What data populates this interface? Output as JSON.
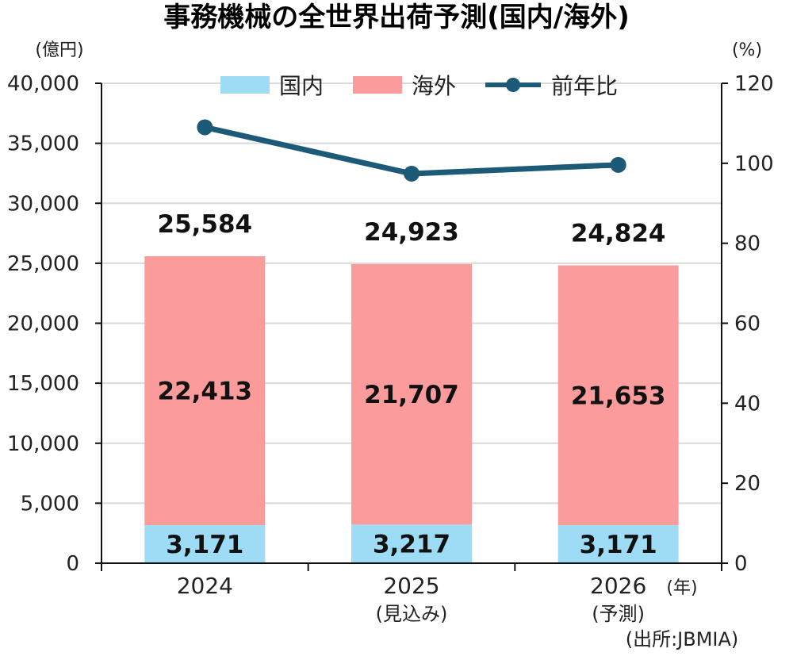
{
  "title": "事務機械の全世界出荷予測(国内/海外)",
  "left_unit": "(億円)",
  "right_unit": "(%)",
  "x_unit": "(年)",
  "source": "(出所:JBMIA)",
  "colors": {
    "domestic": "#9ddcf4",
    "overseas": "#fb9b9b",
    "yoy": "#1d5a78",
    "grid": "#d9d9d9",
    "axis": "#111111"
  },
  "chart_data": {
    "type": "bar",
    "stacked": true,
    "categories": [
      "2024",
      "2025",
      "2026"
    ],
    "category_sublabels": [
      "",
      "(見込み)",
      "(予測)"
    ],
    "series": [
      {
        "name": "国内",
        "values": [
          3171,
          3217,
          3171
        ],
        "labels": [
          "3,171",
          "3,217",
          "3,171"
        ]
      },
      {
        "name": "海外",
        "values": [
          22413,
          21707,
          21653
        ],
        "labels": [
          "22,413",
          "21,707",
          "21,653"
        ]
      }
    ],
    "totals": [
      25584,
      24923,
      24824
    ],
    "total_labels": [
      "25,584",
      "24,923",
      "24,824"
    ],
    "line_series": {
      "name": "前年比",
      "values": [
        109,
        97.4,
        99.6
      ],
      "axis": "right"
    },
    "left_axis": {
      "min": 0,
      "max": 40000,
      "step": 5000,
      "tick_labels": [
        "0",
        "5,000",
        "10,000",
        "15,000",
        "20,000",
        "25,000",
        "30,000",
        "35,000",
        "40,000"
      ]
    },
    "right_axis": {
      "min": 0,
      "max": 120,
      "step": 20,
      "tick_labels": [
        "0",
        "20",
        "40",
        "60",
        "80",
        "100",
        "120"
      ]
    },
    "grid": true,
    "legend": "top",
    "legend_items": [
      "国内",
      "海外",
      "前年比"
    ]
  }
}
